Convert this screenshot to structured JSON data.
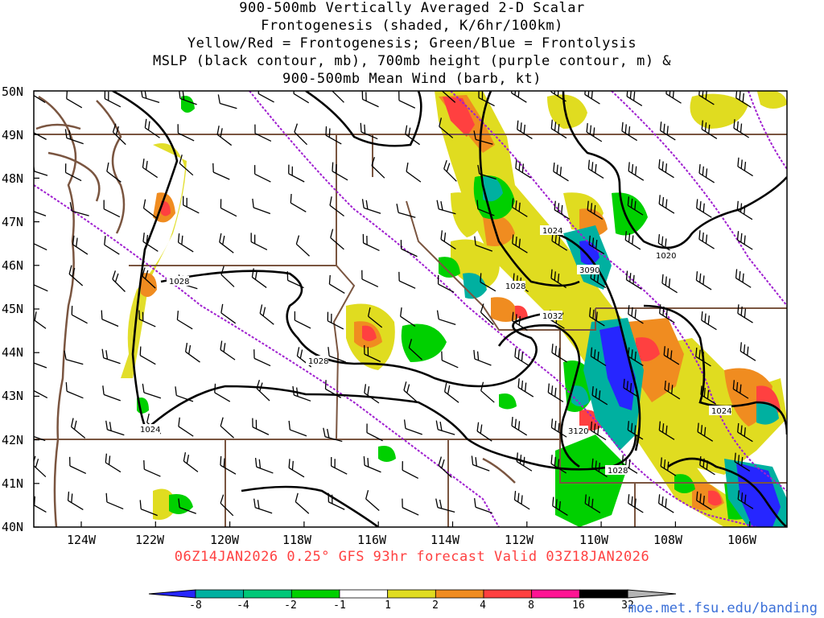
{
  "title_lines": [
    "900-500mb Vertically Averaged 2-D Scalar",
    "Frontogenesis (shaded, K/6hr/100km)",
    "Yellow/Red = Frontogenesis;  Green/Blue = Frontolysis",
    "MSLP (black contour, mb), 700mb height (purple contour, m) &",
    "900-500mb Mean Wind (barb, kt)"
  ],
  "lat_labels": [
    "50N",
    "49N",
    "48N",
    "47N",
    "46N",
    "45N",
    "44N",
    "43N",
    "42N",
    "41N",
    "40N"
  ],
  "lon_labels": [
    "124W",
    "122W",
    "120W",
    "118W",
    "116W",
    "114W",
    "112W",
    "110W",
    "108W",
    "106W"
  ],
  "valid_line": "06Z14JAN2026 0.25° GFS 93hr forecast Valid 03Z18JAN2026",
  "mslp_labels": [
    "1028",
    "1028",
    "1024",
    "1028",
    "1032",
    "1024",
    "1028",
    "1020",
    "1024"
  ],
  "height_labels": [
    "3090",
    "3120"
  ],
  "colorbar": {
    "labels": [
      "-8",
      "-4",
      "-2",
      "-1",
      "1",
      "2",
      "4",
      "8",
      "16",
      "32"
    ],
    "colors": [
      "#2626ff",
      "#00b0a0",
      "#00c878",
      "#00d000",
      "#ffffff",
      "#e0dc20",
      "#f08c20",
      "#ff4040",
      "#ff1493",
      "#000000",
      "#b4b4b4"
    ]
  },
  "colors": {
    "mslp": "#000000",
    "height": "#a020d0",
    "borders": "#7a5540",
    "frontogenesis_light": "#e0dc20",
    "frontogenesis_mid": "#f08c20",
    "frontogenesis_strong": "#ff4040",
    "frontolysis_light": "#00d000",
    "frontolysis_mid": "#00b0a0",
    "frontolysis_strong": "#2626ff"
  },
  "credit": "moe.met.fsu.edu/banding"
}
